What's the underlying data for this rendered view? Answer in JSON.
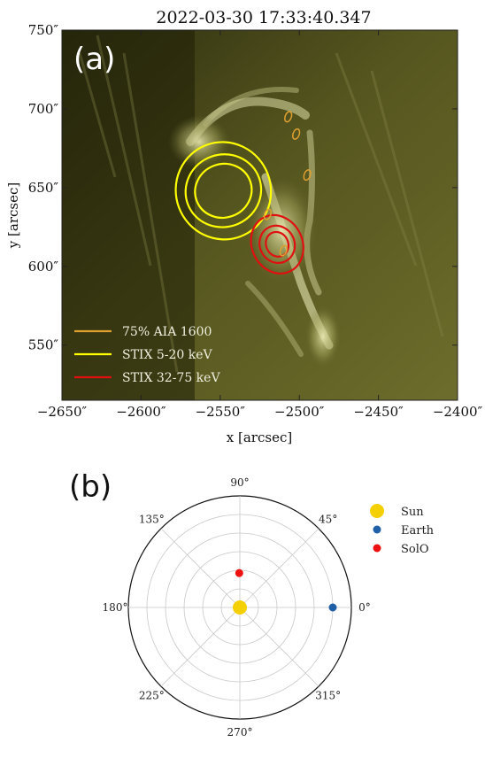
{
  "chart_data": [
    {
      "panel": "(a)",
      "type": "image-contour",
      "title": "2022-03-30 17:33:40.347",
      "xlabel": "x [arcsec]",
      "ylabel": "y [arcsec]",
      "xlim": [
        -2650,
        -2400
      ],
      "ylim": [
        515,
        750
      ],
      "xticks": [
        "−2650″",
        "−2600″",
        "−2550″",
        "−2500″",
        "−2450″",
        "−2400″"
      ],
      "xtick_values": [
        -2650,
        -2600,
        -2550,
        -2500,
        -2450,
        -2400
      ],
      "yticks": [
        "550″",
        "600″",
        "650″",
        "700″",
        "750″"
      ],
      "ytick_values": [
        550,
        600,
        650,
        700,
        750
      ],
      "legend": [
        {
          "label": "75% AIA 1600",
          "color": "#e0a030"
        },
        {
          "label": "STIX 5-20 keV",
          "color": "#ffff00"
        },
        {
          "label": "STIX 32-75 keV",
          "color": "#e01010"
        }
      ],
      "legend_location": "lower-left",
      "background_colormap": "olive / yellow-green (AIA 1600)",
      "series": [
        {
          "contour_set": "STIX 5-20 keV",
          "center": [
            -2548,
            648
          ],
          "levels_semi_axes_arcsec": [
            [
              18,
              17
            ],
            [
              24,
              23
            ],
            [
              30,
              31
            ]
          ],
          "rotation_deg": -20
        },
        {
          "contour_set": "STIX 32-75 keV",
          "center": [
            -2514,
            614
          ],
          "levels_semi_axes_arcsec": [
            [
              7,
              8
            ],
            [
              11,
              12
            ],
            [
              16,
              19
            ]
          ],
          "rotation_deg": -25
        },
        {
          "contour_set": "75% AIA 1600",
          "centers": [
            [
              -2507,
              695
            ],
            [
              -2502,
              684
            ],
            [
              -2495,
              658
            ],
            [
              -2520,
              633
            ],
            [
              -2510,
              610
            ]
          ]
        }
      ]
    },
    {
      "panel": "(b)",
      "type": "polar",
      "angle_labels": [
        "0°",
        "45°",
        "90°",
        "135°",
        "180°",
        "225°",
        "270°",
        "315°"
      ],
      "angle_values": [
        0,
        45,
        90,
        135,
        180,
        225,
        270,
        315
      ],
      "radial_rings": 6,
      "rlim": [
        0,
        1.2
      ],
      "legend": [
        {
          "label": "Sun",
          "color": "#f5d000"
        },
        {
          "label": "Earth",
          "color": "#1f5fa8"
        },
        {
          "label": "SolO",
          "color": "#ee1111"
        }
      ],
      "legend_location": "right",
      "points": [
        {
          "name": "Sun",
          "angle_deg": 0,
          "r": 0.0
        },
        {
          "name": "Earth",
          "angle_deg": 0,
          "r": 1.0
        },
        {
          "name": "SolO",
          "angle_deg": 91,
          "r": 0.37
        }
      ]
    }
  ]
}
